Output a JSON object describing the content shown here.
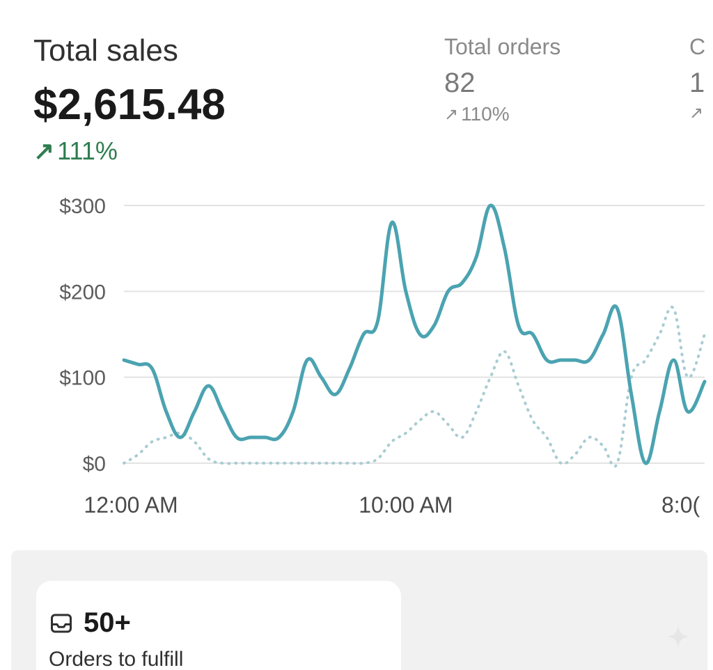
{
  "metrics": {
    "primary": {
      "label": "Total sales",
      "value": "$2,615.48",
      "change": "111%"
    },
    "orders": {
      "label": "Total orders",
      "value": "82",
      "change": "110%"
    },
    "third": {
      "label": "C",
      "value": "1",
      "change": ""
    }
  },
  "todo": {
    "count": "50+",
    "label": "Orders to fulfill",
    "icon": "inbox-icon"
  },
  "colors": {
    "accent_line": "#4ba3b1",
    "comparison_line": "#a9ccd2",
    "positive": "#2e7d4f"
  },
  "chart_data": {
    "type": "line",
    "x_tick_labels": [
      "12:00 AM",
      "10:00 AM",
      "8:0("
    ],
    "x_tick_positions_hours": [
      0,
      10,
      20
    ],
    "ylim": [
      0,
      300
    ],
    "y_ticks": [
      {
        "value": 0,
        "label": "$0"
      },
      {
        "value": 100,
        "label": "$100"
      },
      {
        "value": 200,
        "label": "$200"
      },
      {
        "value": 300,
        "label": "$300"
      }
    ],
    "grid": true,
    "xlim_hours": [
      0,
      20.6
    ],
    "series": [
      {
        "style": "solid",
        "x": [
          0,
          0.5,
          1,
          1.5,
          2,
          2.5,
          3,
          3.5,
          4,
          4.5,
          5,
          5.5,
          6,
          6.5,
          7,
          7.5,
          8,
          8.5,
          9,
          9.5,
          10,
          10.5,
          11,
          11.5,
          12,
          12.5,
          13,
          13.5,
          14,
          14.5,
          15,
          15.5,
          16,
          16.5,
          17,
          17.5,
          18,
          18.5,
          19,
          19.5,
          20,
          20.6
        ],
        "y": [
          120,
          115,
          110,
          60,
          30,
          60,
          90,
          60,
          30,
          30,
          30,
          30,
          60,
          120,
          100,
          80,
          110,
          150,
          165,
          280,
          200,
          150,
          160,
          200,
          210,
          240,
          300,
          250,
          160,
          150,
          120,
          120,
          120,
          120,
          150,
          180,
          80,
          0,
          60,
          120,
          60,
          95
        ]
      },
      {
        "style": "dotted",
        "x": [
          0,
          0.5,
          1,
          1.5,
          2,
          2.5,
          3,
          3.5,
          4,
          4.5,
          5,
          5.5,
          6,
          6.5,
          7,
          7.5,
          8,
          8.5,
          9,
          9.5,
          10,
          10.5,
          11,
          11.5,
          12,
          12.5,
          13,
          13.5,
          14,
          14.5,
          15,
          15.5,
          16,
          16.5,
          17,
          17.5,
          18,
          18.5,
          19,
          19.5,
          20,
          20.6
        ],
        "y": [
          0,
          10,
          25,
          30,
          35,
          25,
          5,
          0,
          0,
          0,
          0,
          0,
          0,
          0,
          0,
          0,
          0,
          0,
          5,
          25,
          35,
          50,
          60,
          45,
          30,
          60,
          100,
          130,
          90,
          50,
          30,
          0,
          10,
          30,
          20,
          0,
          100,
          120,
          150,
          180,
          100,
          150
        ]
      }
    ]
  }
}
